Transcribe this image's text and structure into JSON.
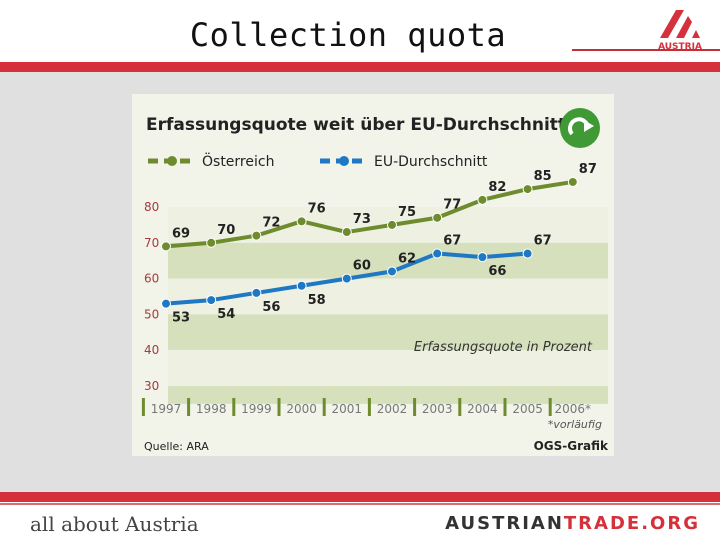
{
  "slide": {
    "title": "Collection quota",
    "logo_text": "AUSTRIA",
    "footer_left": "all about Austria",
    "footer_brand_a": "AUSTRIAN",
    "footer_brand_b": "TRADE.ORG"
  },
  "colors": {
    "red": "#d5313c",
    "green_series": "#6e8c2e",
    "blue_series": "#1e78c4",
    "band_light": "#eef1e2",
    "band_dark": "#d6e0bd"
  },
  "chart_data": {
    "type": "line",
    "title": "Erfassungsquote weit über EU-Durchschnitt",
    "recycle_icon": "recycling-arrows-icon",
    "categories": [
      "1997",
      "1998",
      "1999",
      "2000",
      "2001",
      "2002",
      "2003",
      "2004",
      "2005",
      "2006*"
    ],
    "series": [
      {
        "name": "Österreich",
        "values": [
          69,
          70,
          72,
          76,
          73,
          75,
          77,
          82,
          85,
          87
        ]
      },
      {
        "name": "EU-Durchschnitt",
        "values": [
          53,
          54,
          56,
          58,
          60,
          62,
          67,
          66,
          67,
          null
        ]
      }
    ],
    "ylim": [
      30,
      80
    ],
    "yticks": [
      "30",
      "40",
      "50",
      "60",
      "70",
      "80"
    ],
    "legend_placement": "top",
    "annotation": "Erfassungsquote in Prozent",
    "footnote": "*vorläufig",
    "source": "Quelle: ARA",
    "credit": "OGS-Grafik",
    "grid": "horizontal bands"
  }
}
